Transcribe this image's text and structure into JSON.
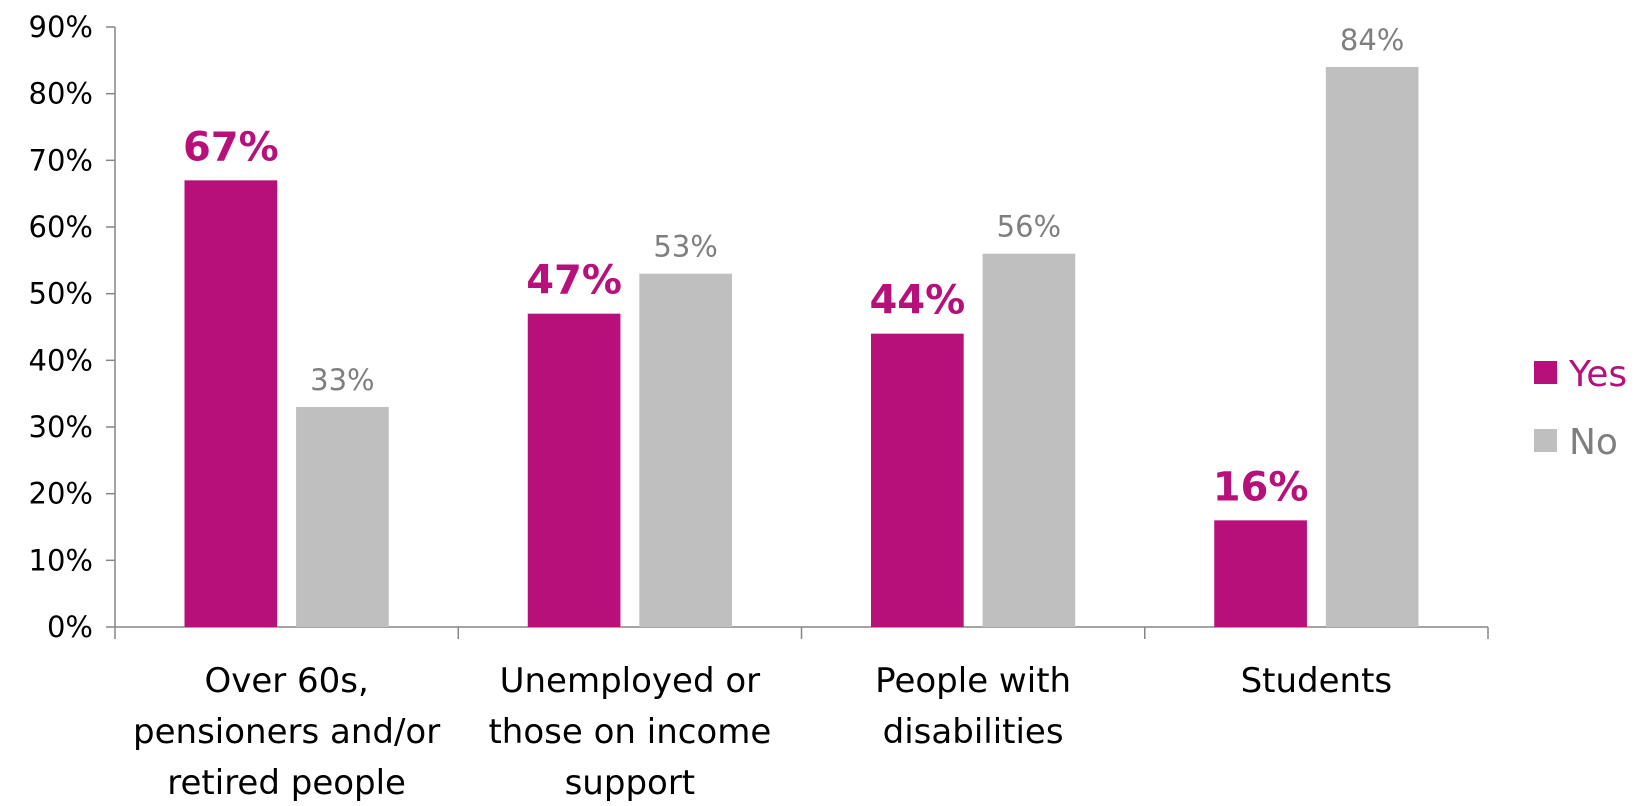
{
  "chart_data": {
    "type": "bar",
    "categories": [
      [
        "Over 60s,",
        "pensioners and/or",
        "retired people"
      ],
      [
        "Unemployed or",
        "those on income",
        "support"
      ],
      [
        "People with",
        "disabilities"
      ],
      [
        "Students"
      ]
    ],
    "series": [
      {
        "name": "Yes",
        "color": "#B8107A",
        "values": [
          67,
          47,
          44,
          16
        ],
        "labels": [
          "67%",
          "47%",
          "44%",
          "16%"
        ]
      },
      {
        "name": "No",
        "color": "#BFBFBF",
        "values": [
          33,
          53,
          56,
          84
        ],
        "labels": [
          "33%",
          "53%",
          "56%",
          "84%"
        ]
      }
    ],
    "label_colors": {
      "Yes": "#B8107A",
      "No": "#7F7F7F"
    },
    "ylim": [
      0,
      90
    ],
    "yticks": [
      0,
      10,
      20,
      30,
      40,
      50,
      60,
      70,
      80,
      90
    ],
    "ytick_labels": [
      "0%",
      "10%",
      "20%",
      "30%",
      "40%",
      "50%",
      "60%",
      "70%",
      "80%",
      "90%"
    ],
    "legend_position": "right",
    "grid": false,
    "title": "",
    "xlabel": "",
    "ylabel": ""
  }
}
